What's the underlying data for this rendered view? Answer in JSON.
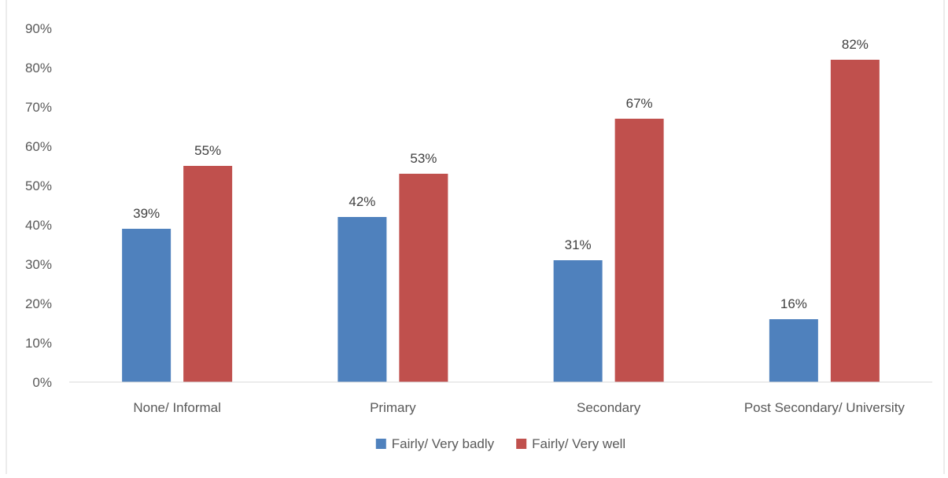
{
  "chart_data": {
    "type": "bar",
    "title": "",
    "xlabel": "",
    "ylabel": "",
    "categories": [
      "None/ Informal",
      "Primary",
      "Secondary",
      "Post Secondary/ University"
    ],
    "series": [
      {
        "name": "Fairly/ Very badly",
        "color": "#4F81BD",
        "values": [
          39,
          42,
          31,
          16
        ],
        "labels": [
          "39%",
          "42%",
          "31%",
          "16%"
        ]
      },
      {
        "name": "Fairly/ Very well",
        "color": "#C0504D",
        "values": [
          55,
          53,
          67,
          82
        ],
        "labels": [
          "55%",
          "53%",
          "67%",
          "82%"
        ]
      }
    ],
    "ylim": [
      0,
      90
    ],
    "yticks": [
      0,
      10,
      20,
      30,
      40,
      50,
      60,
      70,
      80,
      90
    ],
    "ytick_labels": [
      "0%",
      "10%",
      "20%",
      "30%",
      "40%",
      "50%",
      "60%",
      "70%",
      "80%",
      "90%"
    ],
    "grid": false,
    "legend": "bottom"
  }
}
